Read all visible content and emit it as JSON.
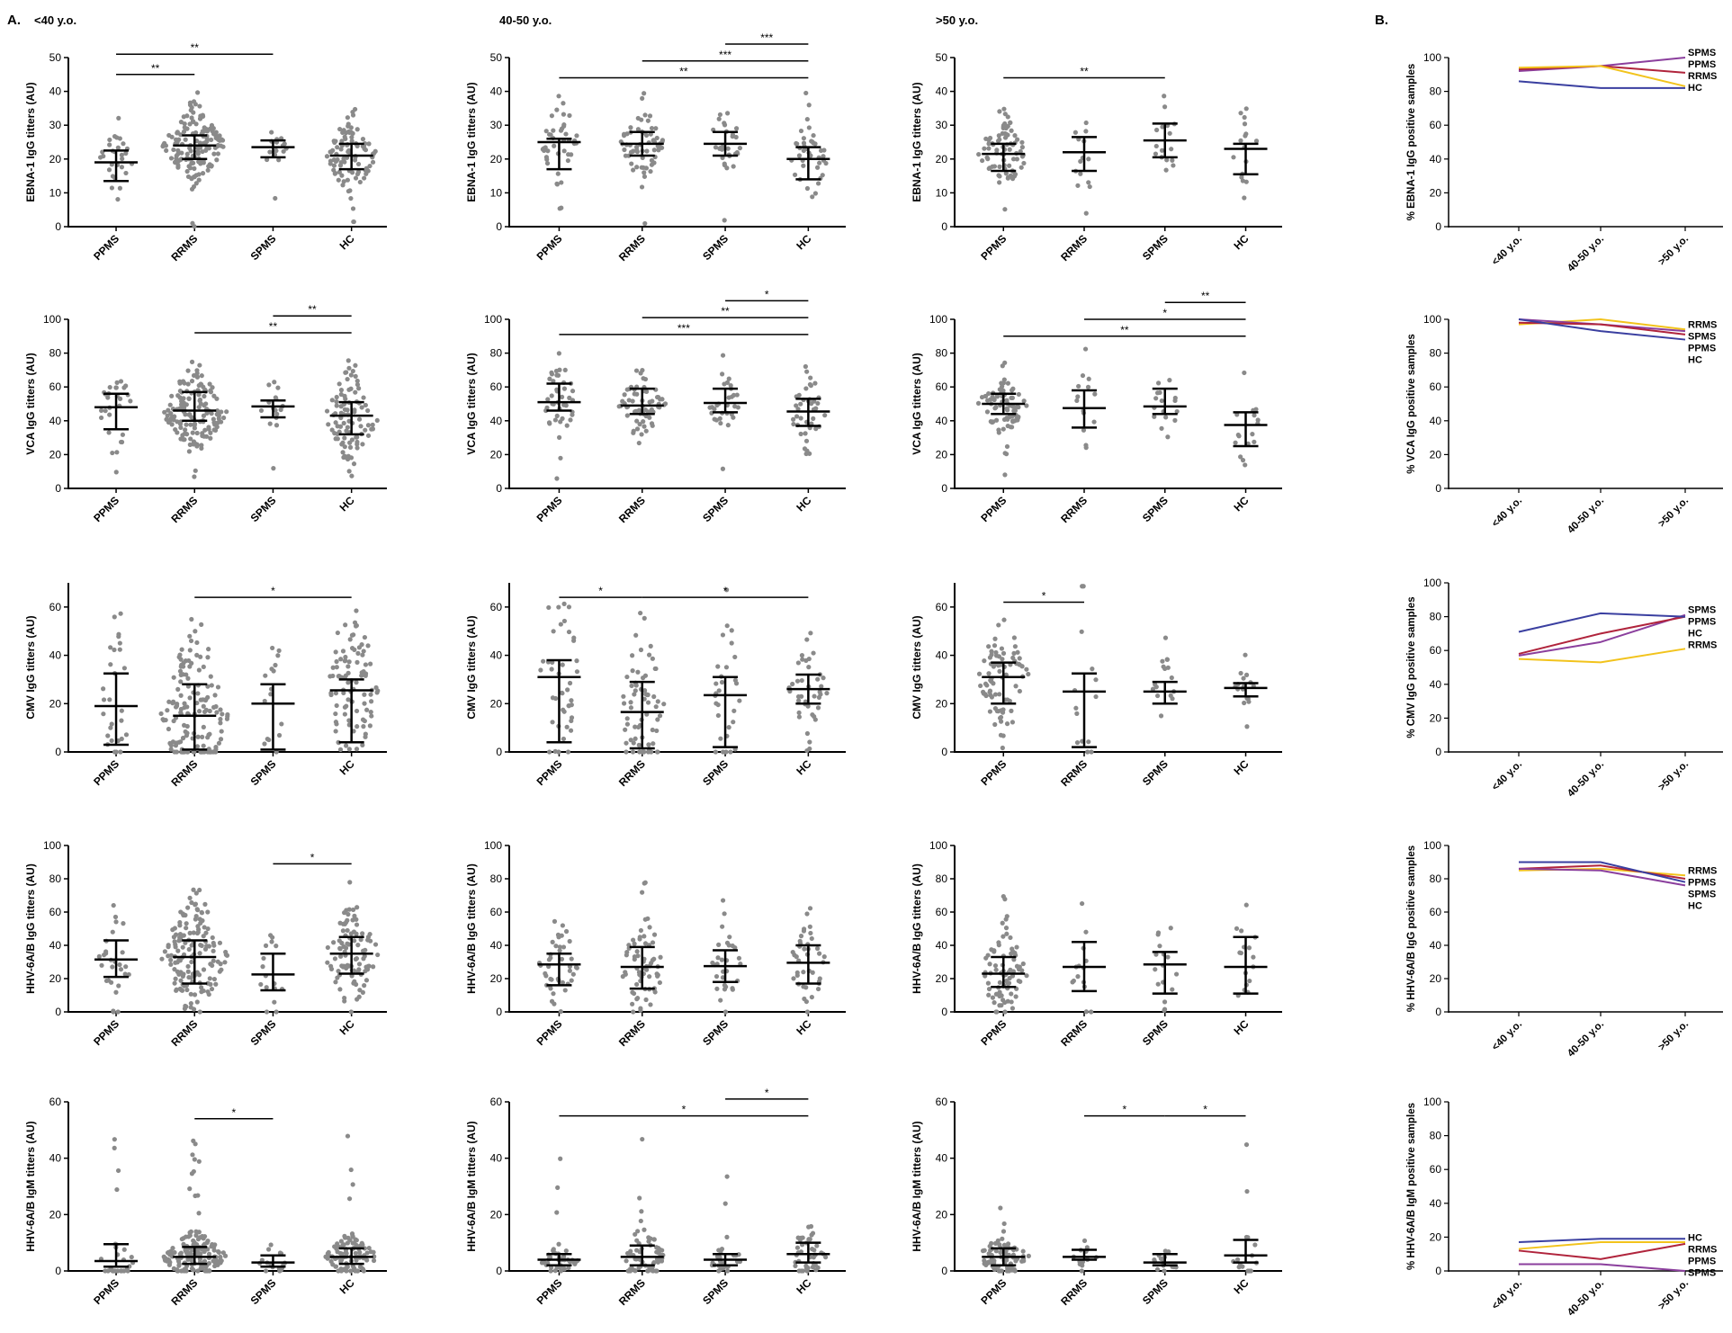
{
  "panel_labels": {
    "a": "A.",
    "b": "B."
  },
  "column_titles": [
    "<40 y.o.",
    "40-50 y.o.",
    ">50 y.o."
  ],
  "colors": {
    "PPMS": "#b0243c",
    "RRMS": "#f2c31c",
    "SPMS": "#8b3f9d",
    "HC": "#3a3fa0",
    "points": "#8a8a8a"
  },
  "chart_data": {
    "type": "scatter",
    "groups": [
      "PPMS",
      "RRMS",
      "SPMS",
      "HC"
    ],
    "rows": [
      {
        "ylabel": "EBNA-1 IgG titters (AU)",
        "ylim": [
          0,
          50
        ],
        "yticks": [
          "0",
          "10",
          "20",
          "30",
          "40",
          "50"
        ],
        "panels": [
          {
            "median": [
              19,
              24,
              23.5,
              21
            ],
            "q1": [
              13.5,
              20,
              20.5,
              17
            ],
            "q3": [
              22.5,
              27,
              25.5,
              24.5
            ],
            "n": [
              28,
              150,
              16,
              95
            ],
            "sig": [
              {
                "from": 0,
                "to": 1,
                "label": "**",
                "y": 45
              },
              {
                "from": 0,
                "to": 2,
                "label": "**",
                "y": 51
              }
            ]
          },
          {
            "median": [
              25,
              24.5,
              24.5,
              20
            ],
            "q1": [
              17,
              21,
              21,
              14
            ],
            "q3": [
              26,
              28,
              28,
              23.5
            ],
            "n": [
              42,
              65,
              30,
              40
            ],
            "sig": [
              {
                "from": 0,
                "to": 3,
                "label": "**",
                "y": 44
              },
              {
                "from": 1,
                "to": 3,
                "label": "***",
                "y": 49
              },
              {
                "from": 2,
                "to": 3,
                "label": "***",
                "y": 54
              }
            ]
          },
          {
            "median": [
              21.5,
              22,
              25.5,
              23
            ],
            "q1": [
              16.5,
              16.5,
              20.5,
              15.5
            ],
            "q3": [
              24.5,
              26.5,
              30.5,
              24.5
            ],
            "n": [
              80,
              14,
              16,
              16
            ],
            "sig": [
              {
                "from": 0,
                "to": 2,
                "label": "**",
                "y": 44
              }
            ]
          }
        ],
        "trend": {
          "ylabel": "% EBNA-1 IgG positive samples",
          "series": [
            {
              "name": "SPMS",
              "values": [
                92,
                95,
                100
              ]
            },
            {
              "name": "PPMS",
              "values": [
                93,
                95,
                91
              ]
            },
            {
              "name": "RRMS",
              "values": [
                94,
                95,
                83
              ]
            },
            {
              "name": "HC",
              "values": [
                86,
                82,
                82
              ]
            }
          ]
        }
      },
      {
        "ylabel": "VCA IgG titters (AU)",
        "ylim": [
          0,
          100
        ],
        "yticks": [
          "0",
          "20",
          "40",
          "60",
          "80",
          "100"
        ],
        "panels": [
          {
            "median": [
              48,
              46,
              48.5,
              43
            ],
            "q1": [
              35,
              40,
              42,
              32
            ],
            "q3": [
              56,
              57,
              52,
              51
            ],
            "n": [
              28,
              150,
              16,
              95
            ],
            "sig": [
              {
                "from": 1,
                "to": 3,
                "label": "**",
                "y": 92
              },
              {
                "from": 2,
                "to": 3,
                "label": "**",
                "y": 102
              }
            ]
          },
          {
            "median": [
              51,
              49,
              50.5,
              45.5
            ],
            "q1": [
              46,
              44,
              45,
              37
            ],
            "q3": [
              62,
              59,
              59,
              53
            ],
            "n": [
              42,
              65,
              30,
              40
            ],
            "sig": [
              {
                "from": 0,
                "to": 3,
                "label": "***",
                "y": 91
              },
              {
                "from": 1,
                "to": 3,
                "label": "**",
                "y": 101
              },
              {
                "from": 2,
                "to": 3,
                "label": "*",
                "y": 111
              }
            ]
          },
          {
            "median": [
              50,
              47.5,
              48.5,
              37.5
            ],
            "q1": [
              44,
              36,
              44,
              25
            ],
            "q3": [
              56,
              58,
              59,
              45
            ],
            "n": [
              80,
              14,
              16,
              16
            ],
            "sig": [
              {
                "from": 0,
                "to": 3,
                "label": "**",
                "y": 90
              },
              {
                "from": 1,
                "to": 3,
                "label": "*",
                "y": 100
              },
              {
                "from": 2,
                "to": 3,
                "label": "**",
                "y": 110
              }
            ]
          }
        ],
        "trend": {
          "ylabel": "% VCA IgG positive samples",
          "series": [
            {
              "name": "RRMS",
              "values": [
                97,
                100,
                94
              ]
            },
            {
              "name": "SPMS",
              "values": [
                100,
                97,
                93
              ]
            },
            {
              "name": "PPMS",
              "values": [
                98,
                97,
                91
              ]
            },
            {
              "name": "HC",
              "values": [
                100,
                93,
                88
              ]
            }
          ]
        }
      },
      {
        "ylabel": "CMV IgG titters (AU)",
        "ylim": [
          0,
          70
        ],
        "yticks": [
          "0",
          "20",
          "40",
          "60"
        ],
        "panels": [
          {
            "median": [
              19,
              15,
              20,
              25.5
            ],
            "q1": [
              3,
              1,
              1,
              4
            ],
            "q3": [
              32.5,
              28,
              28,
              30
            ],
            "n": [
              28,
              150,
              16,
              95
            ],
            "sig": [
              {
                "from": 1,
                "to": 3,
                "label": "*",
                "y": 64
              }
            ]
          },
          {
            "median": [
              31,
              16.5,
              23.5,
              26
            ],
            "q1": [
              4,
              1.5,
              2,
              20
            ],
            "q3": [
              38,
              29,
              31,
              32
            ],
            "n": [
              42,
              65,
              30,
              40
            ],
            "sig": [
              {
                "from": 0,
                "to": 1,
                "label": "*",
                "y": 64
              },
              {
                "from": 1,
                "to": 3,
                "label": "*",
                "y": 64
              }
            ]
          },
          {
            "median": [
              31,
              25,
              25,
              26.5
            ],
            "q1": [
              20,
              2,
              20,
              23
            ],
            "q3": [
              37,
              32.5,
              29,
              28.5
            ],
            "n": [
              80,
              14,
              16,
              16
            ],
            "sig": [
              {
                "from": 0,
                "to": 1,
                "label": "*",
                "y": 62
              }
            ]
          }
        ],
        "trend": {
          "ylabel": "% CMV IgG positive samples",
          "series": [
            {
              "name": "SPMS",
              "values": [
                57,
                65,
                81
              ]
            },
            {
              "name": "PPMS",
              "values": [
                58,
                70,
                80
              ]
            },
            {
              "name": "HC",
              "values": [
                71,
                82,
                80
              ]
            },
            {
              "name": "RRMS",
              "values": [
                55,
                53,
                61
              ]
            }
          ]
        }
      },
      {
        "ylabel": "HHV-6A/B IgG titters (AU)",
        "ylim": [
          0,
          100
        ],
        "yticks": [
          "0",
          "20",
          "40",
          "60",
          "80",
          "100"
        ],
        "panels": [
          {
            "median": [
              31.5,
              33,
              22.5,
              35
            ],
            "q1": [
              21,
              17,
              13,
              23
            ],
            "q3": [
              43,
              43,
              35,
              45
            ],
            "n": [
              28,
              150,
              16,
              95
            ],
            "sig": [
              {
                "from": 2,
                "to": 3,
                "label": "*",
                "y": 89
              }
            ]
          },
          {
            "median": [
              28.5,
              27,
              27.5,
              29.5
            ],
            "q1": [
              16,
              14,
              18,
              17
            ],
            "q3": [
              35,
              39,
              37,
              40
            ],
            "n": [
              42,
              65,
              30,
              40
            ],
            "sig": []
          },
          {
            "median": [
              23,
              27,
              28.5,
              27
            ],
            "q1": [
              15,
              12.5,
              11,
              11
            ],
            "q3": [
              33,
              42,
              36,
              45
            ],
            "n": [
              80,
              14,
              16,
              16
            ],
            "sig": []
          }
        ],
        "trend": {
          "ylabel": "% HHV-6A/B IgG positive samples",
          "series": [
            {
              "name": "RRMS",
              "values": [
                85,
                86,
                82
              ]
            },
            {
              "name": "PPMS",
              "values": [
                86,
                88,
                80
              ]
            },
            {
              "name": "SPMS",
              "values": [
                86,
                85,
                76
              ]
            },
            {
              "name": "HC",
              "values": [
                90,
                90,
                78
              ]
            }
          ]
        }
      },
      {
        "ylabel": "HHV-6A/B IgM titters (AU)",
        "ylim": [
          0,
          60
        ],
        "yticks": [
          "0",
          "20",
          "40",
          "60"
        ],
        "panels": [
          {
            "median": [
              3.5,
              5,
              3,
              5
            ],
            "q1": [
              1.5,
              2.5,
              1.5,
              2.5
            ],
            "q3": [
              9.5,
              8.5,
              5.5,
              8
            ],
            "n": [
              28,
              150,
              16,
              95
            ],
            "sig": [
              {
                "from": 1,
                "to": 2,
                "label": "*",
                "y": 54
              }
            ]
          },
          {
            "median": [
              4,
              5,
              4,
              6
            ],
            "q1": [
              2,
              2,
              2,
              3
            ],
            "q3": [
              6,
              9,
              6,
              10
            ],
            "n": [
              42,
              65,
              30,
              40
            ],
            "sig": [
              {
                "from": 0,
                "to": 3,
                "label": "*",
                "y": 55
              },
              {
                "from": 2,
                "to": 3,
                "label": "*",
                "y": 61
              }
            ]
          },
          {
            "median": [
              5,
              5,
              3,
              5.5
            ],
            "q1": [
              2,
              4,
              2,
              3
            ],
            "q3": [
              8,
              7.5,
              6,
              11
            ],
            "n": [
              80,
              14,
              16,
              16
            ],
            "sig": [
              {
                "from": 1,
                "to": 2,
                "label": "*",
                "y": 55
              },
              {
                "from": 2,
                "to": 3,
                "label": "*",
                "y": 55
              }
            ]
          }
        ],
        "trend": {
          "ylabel": "% HHV-6A/B IgM positive samples",
          "series": [
            {
              "name": "HC",
              "values": [
                17,
                19,
                19
              ]
            },
            {
              "name": "RRMS",
              "values": [
                13,
                17,
                17
              ]
            },
            {
              "name": "PPMS",
              "values": [
                12,
                7,
                16
              ]
            },
            {
              "name": "SPMS",
              "values": [
                4,
                4,
                0
              ]
            }
          ]
        }
      }
    ],
    "trend_x": [
      "<40 y.o.",
      "40-50 y.o.",
      ">50 y.o."
    ],
    "trend_ylim": [
      0,
      100
    ],
    "trend_yticks": [
      "0",
      "20",
      "40",
      "60",
      "80",
      "100"
    ]
  }
}
